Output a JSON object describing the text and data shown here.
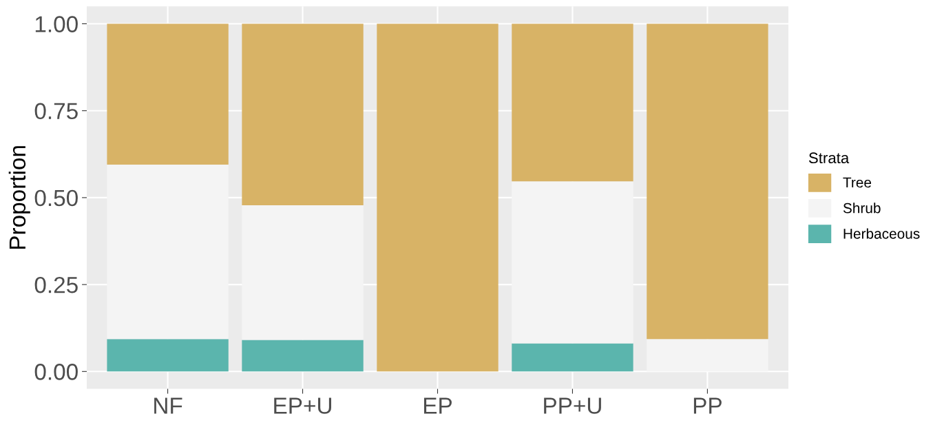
{
  "chart_data": {
    "type": "bar",
    "stacked": true,
    "ylabel": "Proportion",
    "legend_title": "Strata",
    "legend": "right",
    "grid": true,
    "categories": [
      "NF",
      "EP+U",
      "EP",
      "PP+U",
      "PP"
    ],
    "series": [
      {
        "name": "Herbaceous",
        "color": "#5bb5ad",
        "values": [
          0.093,
          0.091,
          0,
          0.081,
          0
        ]
      },
      {
        "name": "Shrub",
        "color": "#f4f4f4",
        "values": [
          0.502,
          0.387,
          0,
          0.466,
          0.093
        ]
      },
      {
        "name": "Tree",
        "color": "#d8b366",
        "values": [
          0.405,
          0.522,
          1.0,
          0.453,
          0.907
        ]
      }
    ],
    "ylim": [
      -0.05,
      1.05
    ],
    "yticks": [
      {
        "value": 0,
        "label": "0.00"
      },
      {
        "value": 0.25,
        "label": "0.25"
      },
      {
        "value": 0.5,
        "label": "0.50"
      },
      {
        "value": 0.75,
        "label": "0.75"
      },
      {
        "value": 1,
        "label": "1.00"
      }
    ]
  }
}
